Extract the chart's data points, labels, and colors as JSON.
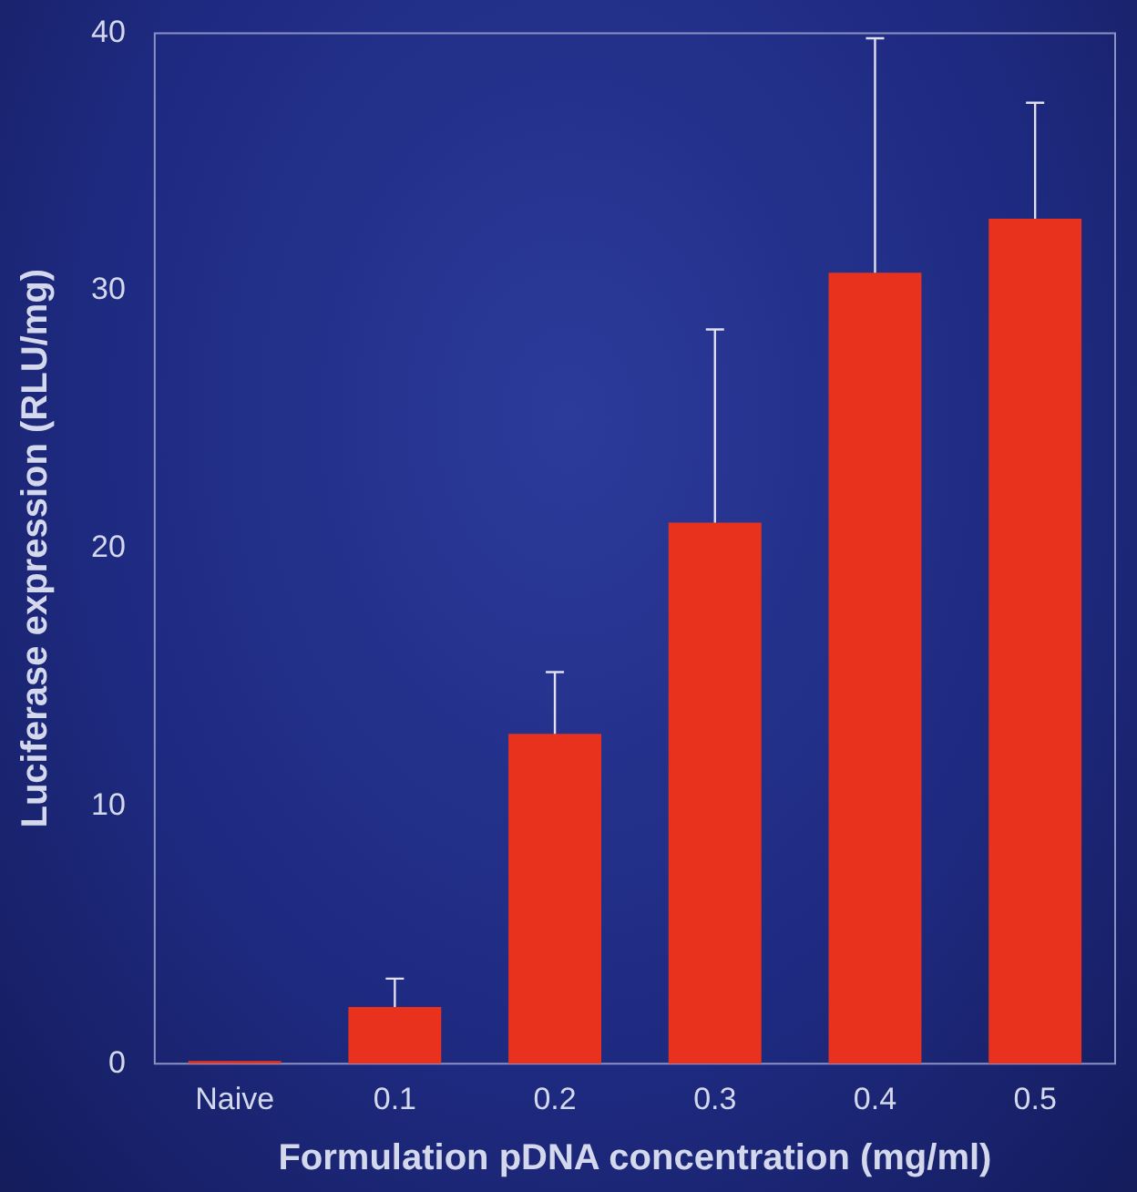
{
  "chart_data": {
    "type": "bar",
    "xlabel": "Formulation pDNA concentration (mg/ml)",
    "ylabel": "Luciferase expression (RLU/mg)",
    "categories": [
      "Naive",
      "0.1",
      "0.2",
      "0.3",
      "0.4",
      "0.5"
    ],
    "values": [
      0.1,
      2.2,
      12.8,
      21.0,
      30.7,
      32.8
    ],
    "errors": [
      null,
      [
        2.2,
        3.3
      ],
      [
        12.8,
        15.2
      ],
      [
        21.0,
        28.5
      ],
      [
        30.7,
        39.8
      ],
      [
        32.8,
        37.3
      ]
    ],
    "color": "#e8321e",
    "ylim": [
      0,
      40
    ],
    "yticks": [
      0,
      10,
      20,
      30,
      40
    ],
    "grid": false,
    "legend": false
  }
}
